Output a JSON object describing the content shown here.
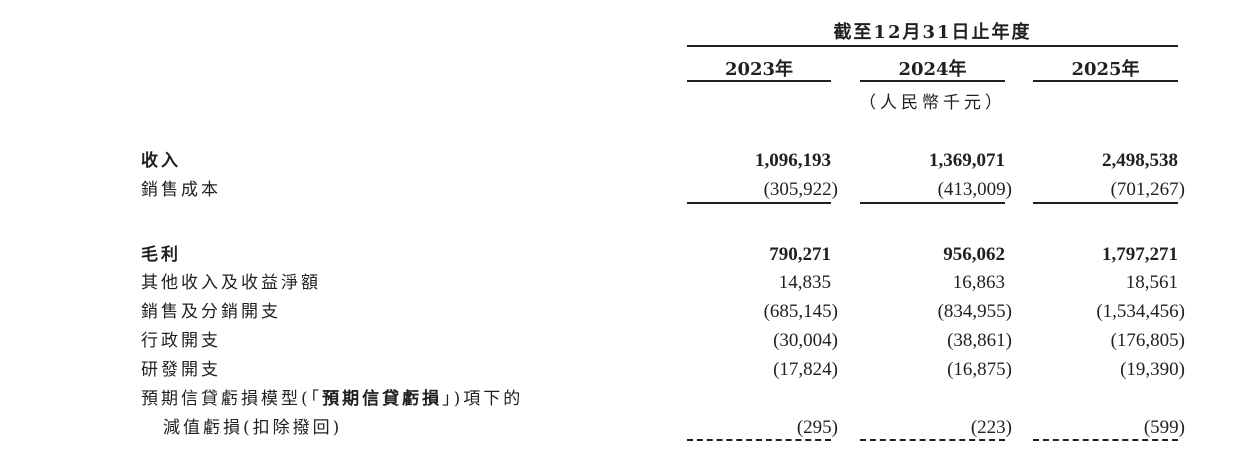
{
  "header": {
    "period": "截至12月31日止年度",
    "years": [
      "2023年",
      "2024年",
      "2025年"
    ],
    "unit": "（人民幣千元）"
  },
  "rows": [
    {
      "label": "收入",
      "bold": true,
      "values": [
        "1,096,193",
        "1,369,071",
        "2,498,538"
      ]
    },
    {
      "label": "銷售成本",
      "bold": false,
      "values": [
        "(305,922)",
        "(413,009)",
        "(701,267)"
      ]
    },
    {
      "label": "毛利",
      "bold": true,
      "values": [
        "790,271",
        "956,062",
        "1,797,271"
      ]
    },
    {
      "label": "其他收入及收益淨額",
      "bold": false,
      "values": [
        "14,835",
        "16,863",
        "18,561"
      ]
    },
    {
      "label": "銷售及分銷開支",
      "bold": false,
      "values": [
        "(685,145)",
        "(834,955)",
        "(1,534,456)"
      ]
    },
    {
      "label": "行政開支",
      "bold": false,
      "values": [
        "(30,004)",
        "(38,861)",
        "(176,805)"
      ]
    },
    {
      "label": "研發開支",
      "bold": false,
      "values": [
        "(17,824)",
        "(16,875)",
        "(19,390)"
      ]
    },
    {
      "label_line1_prefix": "預期信貸虧損模型(「",
      "label_line1_bold": "預期信貸虧損",
      "label_line1_suffix": "」)項下的",
      "label_line2": "減值虧損(扣除撥回)",
      "values": [
        "(295)",
        "(223)",
        "(599)"
      ]
    }
  ]
}
